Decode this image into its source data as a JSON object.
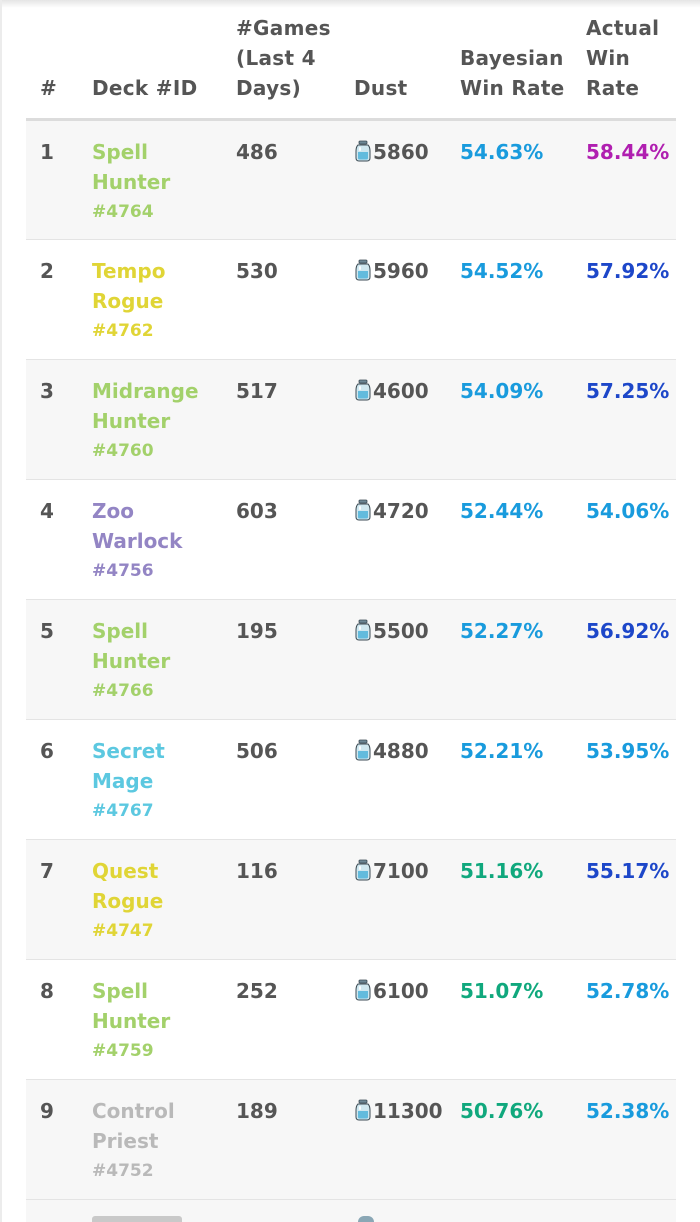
{
  "header": {
    "rank": "#",
    "deck": "Deck #ID",
    "games": "#Games (Last 4 Days)",
    "dust": "Dust",
    "bayesian": "Bayesian Win Rate",
    "actual": "Actual Win Rate"
  },
  "colors": {
    "hunter": "#a3d16b",
    "rogue": "#e0d536",
    "warlock": "#9385c4",
    "mage": "#5cc8e0",
    "priest": "#b9b9b9",
    "rate_magenta": "#b01fb0",
    "rate_navy": "#1d47c9",
    "rate_blue": "#199bdd",
    "rate_green": "#10a87d",
    "text_gray": "#555555"
  },
  "rows": [
    {
      "rank": "1",
      "name_line1": "Spell",
      "name_line2": "Hunter",
      "id": "#4764",
      "class": "hunter",
      "games": "486",
      "dust": "5860",
      "bayesian": "54.63%",
      "bayesian_color": "#199bdd",
      "actual": "58.44%",
      "actual_color": "#b01fb0"
    },
    {
      "rank": "2",
      "name_line1": "Tempo",
      "name_line2": "Rogue",
      "id": "#4762",
      "class": "rogue",
      "games": "530",
      "dust": "5960",
      "bayesian": "54.52%",
      "bayesian_color": "#199bdd",
      "actual": "57.92%",
      "actual_color": "#1d47c9"
    },
    {
      "rank": "3",
      "name_line1": "Midrange",
      "name_line2": "Hunter",
      "id": "#4760",
      "class": "hunter",
      "games": "517",
      "dust": "4600",
      "bayesian": "54.09%",
      "bayesian_color": "#199bdd",
      "actual": "57.25%",
      "actual_color": "#1d47c9"
    },
    {
      "rank": "4",
      "name_line1": "Zoo",
      "name_line2": "Warlock",
      "id": "#4756",
      "class": "warlock",
      "games": "603",
      "dust": "4720",
      "bayesian": "52.44%",
      "bayesian_color": "#199bdd",
      "actual": "54.06%",
      "actual_color": "#199bdd"
    },
    {
      "rank": "5",
      "name_line1": "Spell",
      "name_line2": "Hunter",
      "id": "#4766",
      "class": "hunter",
      "games": "195",
      "dust": "5500",
      "bayesian": "52.27%",
      "bayesian_color": "#199bdd",
      "actual": "56.92%",
      "actual_color": "#1d47c9"
    },
    {
      "rank": "6",
      "name_line1": "Secret",
      "name_line2": "Mage",
      "id": "#4767",
      "class": "mage",
      "games": "506",
      "dust": "4880",
      "bayesian": "52.21%",
      "bayesian_color": "#199bdd",
      "actual": "53.95%",
      "actual_color": "#199bdd"
    },
    {
      "rank": "7",
      "name_line1": "Quest",
      "name_line2": "Rogue",
      "id": "#4747",
      "class": "rogue",
      "games": "116",
      "dust": "7100",
      "bayesian": "51.16%",
      "bayesian_color": "#10a87d",
      "actual": "55.17%",
      "actual_color": "#1d47c9"
    },
    {
      "rank": "8",
      "name_line1": "Spell",
      "name_line2": "Hunter",
      "id": "#4759",
      "class": "hunter",
      "games": "252",
      "dust": "6100",
      "bayesian": "51.07%",
      "bayesian_color": "#10a87d",
      "actual": "52.78%",
      "actual_color": "#199bdd"
    },
    {
      "rank": "9",
      "name_line1": "Control",
      "name_line2": "Priest",
      "id": "#4752",
      "class": "priest",
      "games": "189",
      "dust": "11300",
      "bayesian": "50.76%",
      "bayesian_color": "#10a87d",
      "actual": "52.38%",
      "actual_color": "#199bdd"
    }
  ],
  "dust_icon": "dust-jar-icon"
}
